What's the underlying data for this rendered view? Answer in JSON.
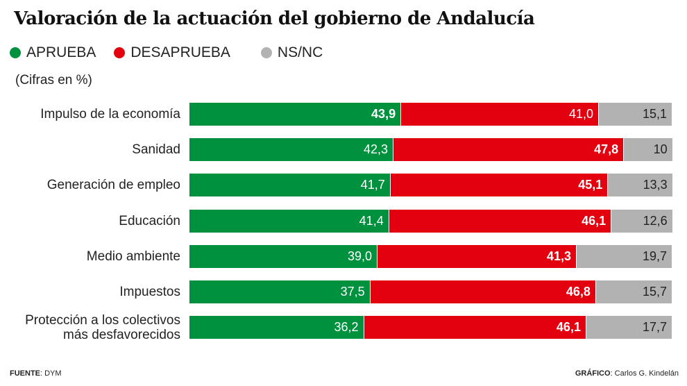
{
  "chart_data": {
    "type": "bar",
    "stacked": true,
    "orientation": "horizontal",
    "title": "Valoración de la actuación del gobierno de Andalucía",
    "subtitle": "(Cifras en %)",
    "categories": [
      "Impulso de la economía",
      "Sanidad",
      "Generación de empleo",
      "Educación",
      "Medio ambiente",
      "Impuestos",
      "Protección a los colectivos más desfavorecidos"
    ],
    "category_lines": [
      [
        "Impulso de la economía"
      ],
      [
        "Sanidad"
      ],
      [
        "Generación de empleo"
      ],
      [
        "Educación"
      ],
      [
        "Medio ambiente"
      ],
      [
        "Impuestos"
      ],
      [
        "Protección a los colectivos",
        "más desfavorecidos"
      ]
    ],
    "series": [
      {
        "name": "APRUEBA",
        "color": "#00913f",
        "values": [
          43.9,
          42.3,
          41.7,
          41.4,
          39.0,
          37.5,
          36.2
        ],
        "labels": [
          "43,9",
          "42,3",
          "41,7",
          "41,4",
          "39,0",
          "37,5",
          "36,2"
        ]
      },
      {
        "name": "DESAPRUEBA",
        "color": "#e3000f",
        "values": [
          41.0,
          47.8,
          45.1,
          46.1,
          41.3,
          46.8,
          46.1
        ],
        "labels": [
          "41,0",
          "47,8",
          "45,1",
          "46,1",
          "41,3",
          "46,8",
          "46,1"
        ]
      },
      {
        "name": "NS/NC",
        "color": "#b2b2b2",
        "values": [
          15.1,
          10,
          13.3,
          12.6,
          19.7,
          15.7,
          17.7
        ],
        "labels": [
          "15,1",
          "10",
          "13,3",
          "12,6",
          "19,7",
          "15,7",
          "17,7"
        ]
      }
    ],
    "xlim": [
      0,
      100
    ],
    "legend": "top-left"
  },
  "footer": {
    "source_label": "FUENTE",
    "source": ": DYM",
    "credit_label": "GRÁFICO",
    "credit": ": Carlos G. Kindelán"
  }
}
